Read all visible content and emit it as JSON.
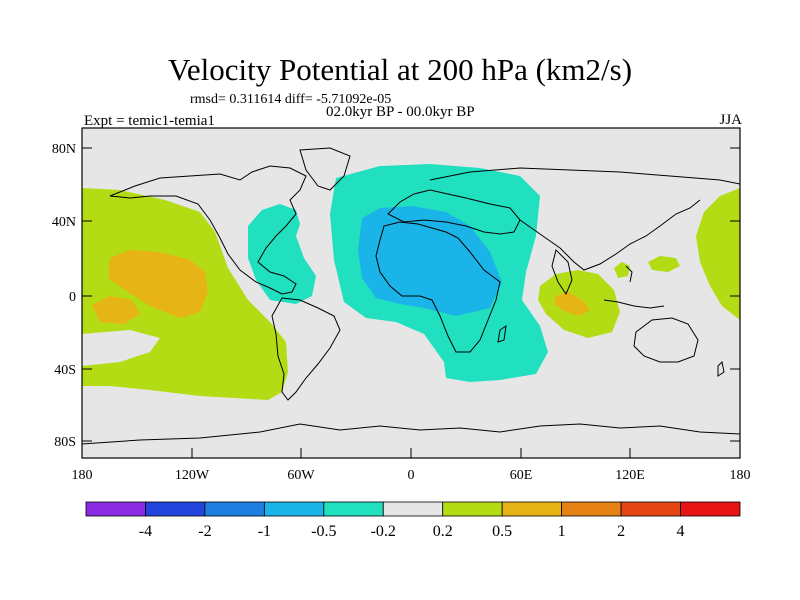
{
  "title": "Velocity Potential at 200 hPa (km2/s)",
  "subtitle_stats": "rmsd= 0.311614 diff= -5.71092e-05",
  "experiment": "Expt = temic1-temia1",
  "period": "02.0kyr BP - 00.0kyr BP",
  "season": "JJA",
  "map": {
    "lat_labels": [
      "80N",
      "40N",
      "0",
      "40S",
      "80S"
    ],
    "lon_labels": [
      "180",
      "120W",
      "60W",
      "0",
      "60E",
      "120E",
      "180"
    ]
  },
  "colorbar": {
    "tick_labels": [
      "-4",
      "-2",
      "-1",
      "-0.5",
      "-0.2",
      "0.2",
      "0.5",
      "1",
      "2",
      "4"
    ],
    "colors": [
      "#8a2be2",
      "#2244dd",
      "#1e7fe0",
      "#1ab4e8",
      "#20e0c0",
      "#e6e6e6",
      "#b4dc14",
      "#e6b414",
      "#e68214",
      "#e64614",
      "#e61414"
    ]
  },
  "colors": {
    "neutral_fill": "#e6e6e6",
    "light_negative": "#20e0c0",
    "moderate_negative": "#1ab4e8",
    "light_positive": "#b4dc14",
    "moderate_positive": "#e6b414"
  }
}
